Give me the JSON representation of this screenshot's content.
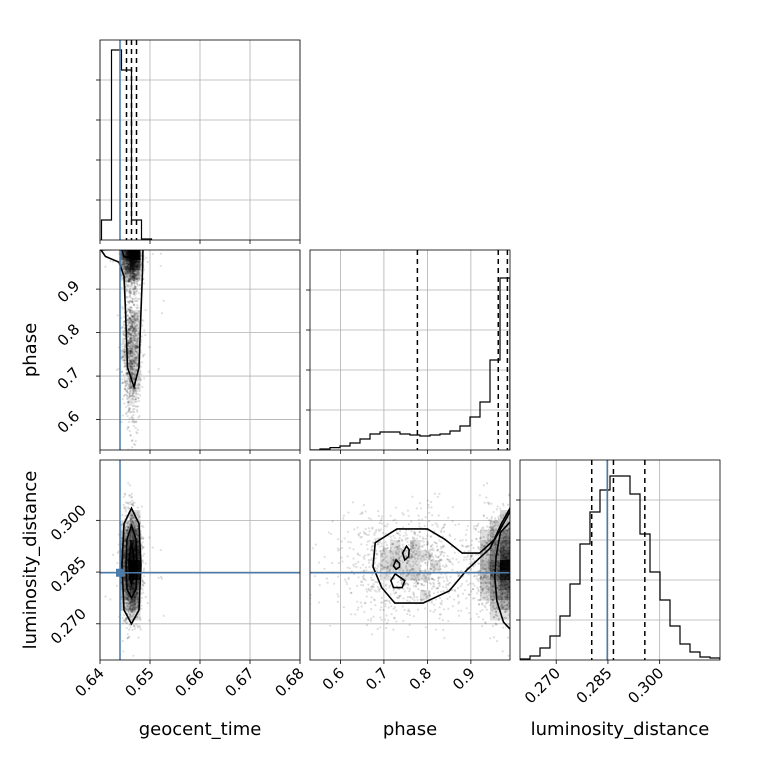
{
  "chart_data": {
    "type": "corner",
    "parameters": [
      {
        "name": "geocent_time",
        "label": "geocent_time",
        "range": [
          0.64,
          0.68
        ],
        "ticks": [
          0.64,
          0.65,
          0.66,
          0.67,
          0.68
        ],
        "tick_labels": [
          "0.64",
          "0.65",
          "0.66",
          "0.67",
          "0.68"
        ],
        "truth": 0.644,
        "quantiles": [
          0.6453,
          0.6463,
          0.6473
        ]
      },
      {
        "name": "phase",
        "label": "phase",
        "range": [
          0.53,
          0.99
        ],
        "ticks": [
          0.6,
          0.7,
          0.8,
          0.9
        ],
        "tick_labels": [
          "0.6",
          "0.7",
          "0.8",
          "0.9"
        ],
        "truth": null,
        "quantiles": [
          0.777,
          0.963,
          0.984
        ]
      },
      {
        "name": "luminosity_distance",
        "label": "luminosity_distance",
        "range": [
          0.2595,
          0.3175
        ],
        "ticks": [
          0.27,
          0.285,
          0.3
        ],
        "tick_labels": [
          "0.270",
          "0.285",
          "0.300"
        ],
        "truth": 0.2848,
        "quantiles": [
          0.2803,
          0.2866,
          0.2957
        ]
      }
    ],
    "histograms": {
      "geocent_time": {
        "edges_start": 0.6403,
        "bin_width": 0.002,
        "counts": [
          0.1,
          0.95,
          0.85,
          0.1,
          0.005
        ]
      },
      "phase": {
        "edges_start": 0.53,
        "bin_width": 0.023,
        "counts": [
          0.0,
          0.005,
          0.012,
          0.02,
          0.035,
          0.055,
          0.08,
          0.09,
          0.09,
          0.08,
          0.075,
          0.07,
          0.075,
          0.08,
          0.095,
          0.12,
          0.165,
          0.24,
          0.45,
          0.86
        ]
      },
      "luminosity_distance": {
        "edges_start": 0.2595,
        "bin_width": 0.0029,
        "counts": [
          0.005,
          0.02,
          0.06,
          0.12,
          0.22,
          0.38,
          0.58,
          0.74,
          0.85,
          0.92,
          0.92,
          0.83,
          0.63,
          0.44,
          0.3,
          0.17,
          0.08,
          0.04,
          0.015,
          0.01
        ]
      }
    },
    "grid": true,
    "truth_color": "#4a7bab",
    "quantile_style": "dashed"
  }
}
